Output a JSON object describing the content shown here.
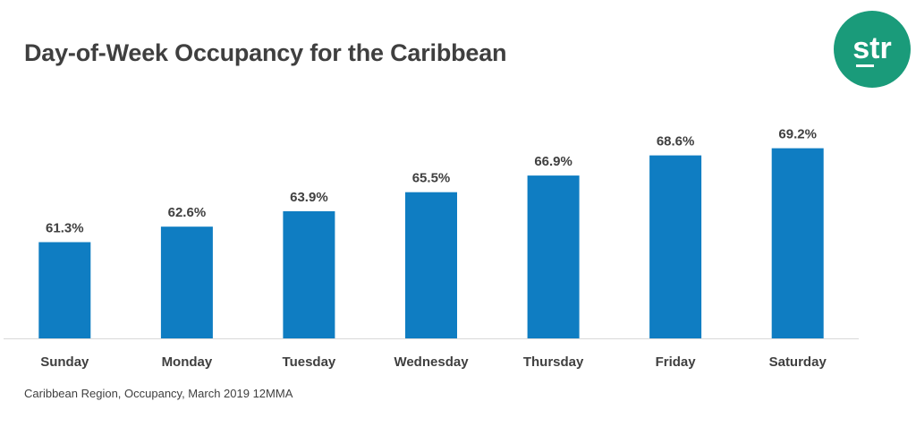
{
  "title": "Day-of-Week Occupancy for the Caribbean",
  "source_note": "Caribbean Region, Occupancy, March 2019 12MMA",
  "logo": {
    "text": "str",
    "color": "#1a9b7a",
    "text_color": "#ffffff"
  },
  "colors": {
    "bar": "#0f7dc2",
    "axis": "#d9d9d9",
    "title": "#3f3f3f"
  },
  "chart_data": {
    "type": "bar",
    "categories": [
      "Sunday",
      "Monday",
      "Tuesday",
      "Wednesday",
      "Thursday",
      "Friday",
      "Saturday"
    ],
    "values": [
      61.3,
      62.6,
      63.9,
      65.5,
      66.9,
      68.6,
      69.2
    ],
    "data_labels": [
      "61.3%",
      "62.6%",
      "63.9%",
      "65.5%",
      "66.9%",
      "68.6%",
      "69.2%"
    ],
    "unit": "%",
    "xlabel": "",
    "ylabel": "",
    "ylim": [
      53.2,
      70.0
    ],
    "grid": false,
    "legend": false
  }
}
